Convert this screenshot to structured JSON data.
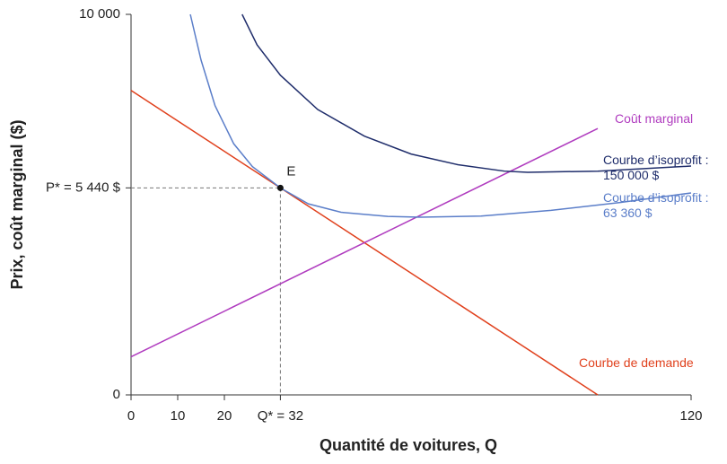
{
  "chart_data": {
    "type": "line",
    "ylabel": "Prix, coût marginal ($)",
    "xlabel": "Quantité de voitures, Q",
    "xlim": [
      0,
      120
    ],
    "ylim": [
      0,
      10000
    ],
    "xticks": [
      0,
      10,
      20,
      {
        "value": 32,
        "label": "Q* = 32"
      },
      120
    ],
    "yticks": [
      0,
      {
        "value": 5440,
        "label": "P* = 5 440 $"
      },
      {
        "value": 10000,
        "label": "10 000"
      }
    ],
    "point": {
      "label": "E",
      "x": 32,
      "y": 5440
    },
    "series": [
      {
        "name": "Courbe de demande",
        "color": "#e0401c",
        "x": [
          0,
          100
        ],
        "values": [
          8000,
          0
        ]
      },
      {
        "name": "Coût marginal",
        "color": "#b03cbf",
        "x": [
          0,
          100
        ],
        "values": [
          1000,
          7000
        ]
      },
      {
        "name": "Courbe d’isoprofit : 150 000 $",
        "color": "#1f2d6b",
        "x": [
          23.8,
          27,
          32,
          40,
          50,
          60,
          70,
          80,
          85,
          100,
          120
        ],
        "values": [
          10000,
          9200,
          8400,
          7500,
          6800,
          6330,
          6050,
          5880,
          5850,
          5880,
          6014
        ]
      },
      {
        "name": "Courbe d’isoprofit : 63 360 $",
        "color": "#5b7ec9",
        "x": [
          12.7,
          15,
          18,
          22,
          26,
          32,
          38,
          45,
          55,
          62,
          75,
          90,
          105,
          120
        ],
        "values": [
          10000,
          8800,
          7600,
          6600,
          6000,
          5440,
          5020,
          4800,
          4690,
          4670,
          4700,
          4850,
          5060,
          5307
        ]
      }
    ]
  }
}
